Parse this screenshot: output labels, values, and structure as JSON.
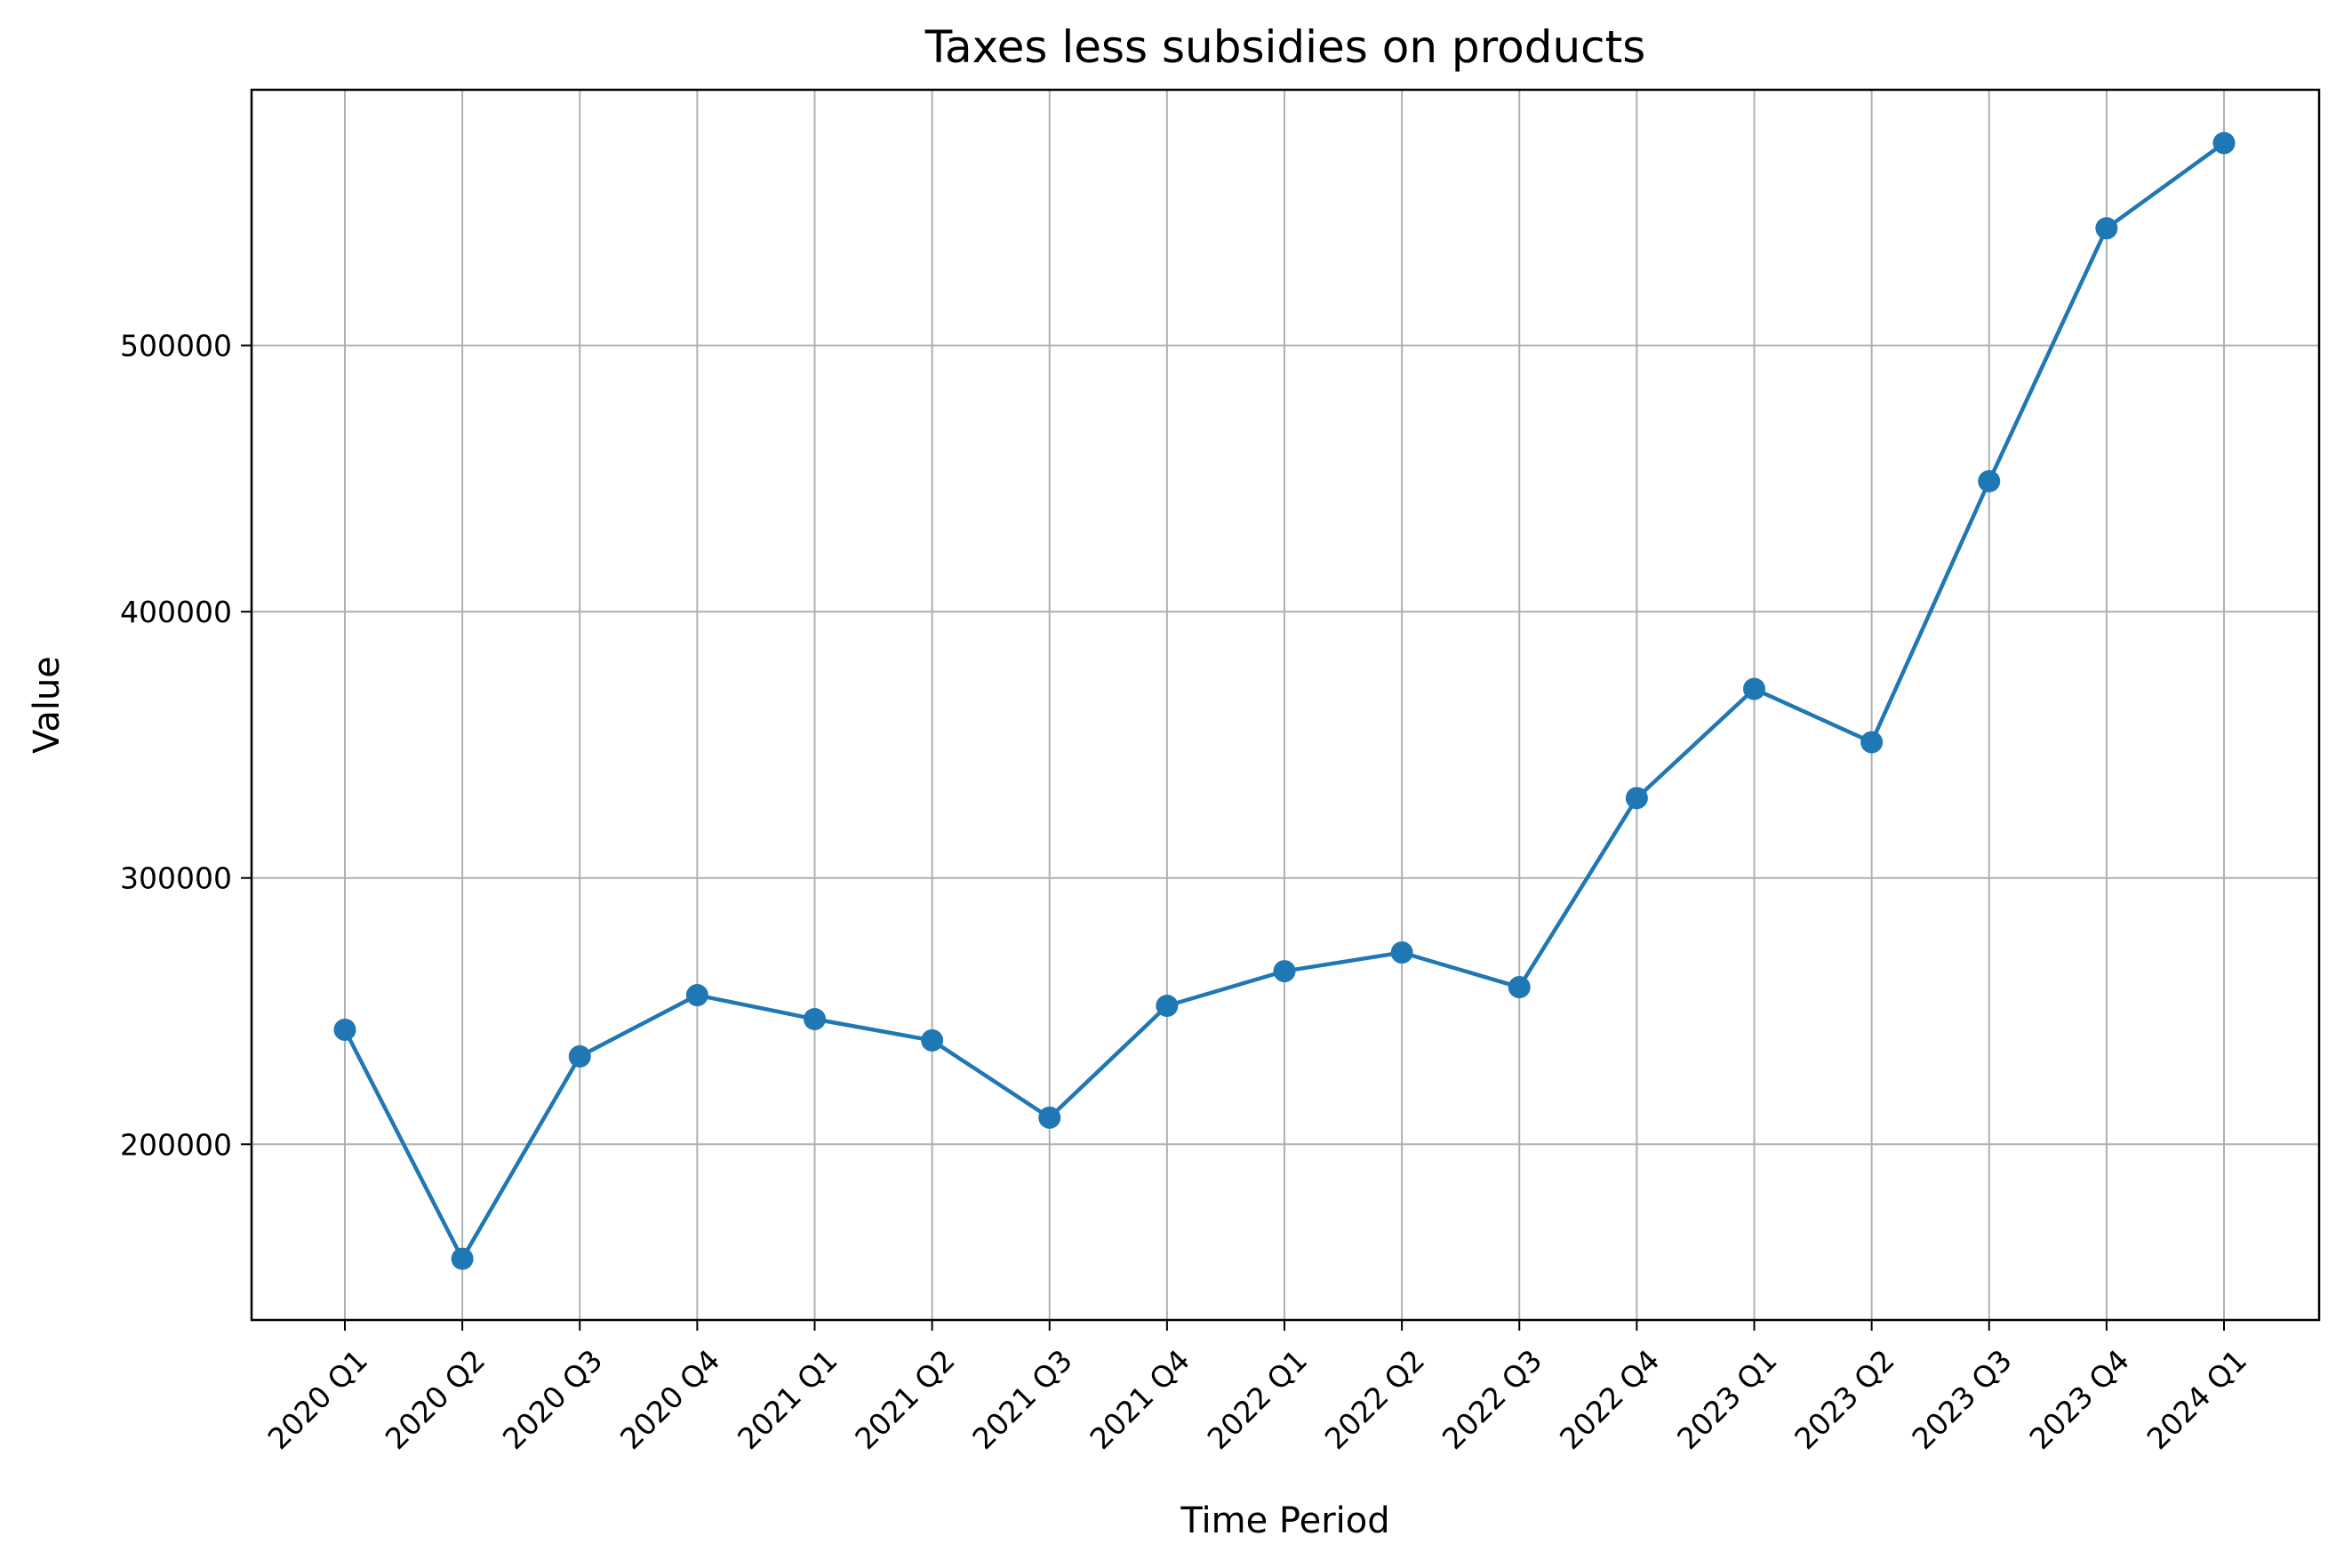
{
  "chart_data": {
    "type": "line",
    "title": "Taxes less subsidies on products",
    "xlabel": "Time Period",
    "ylabel": "Value",
    "categories": [
      "2020 Q1",
      "2020 Q2",
      "2020 Q3",
      "2020 Q4",
      "2021 Q1",
      "2021 Q2",
      "2021 Q3",
      "2021 Q4",
      "2022 Q1",
      "2022 Q2",
      "2022 Q3",
      "2022 Q4",
      "2023 Q1",
      "2023 Q2",
      "2023 Q3",
      "2023 Q4",
      "2024 Q1"
    ],
    "series": [
      {
        "values": [
          243000,
          157000,
          233000,
          256000,
          247000,
          239000,
          210000,
          252000,
          265000,
          272000,
          259000,
          330000,
          371000,
          351000,
          449000,
          544000,
          576000
        ],
        "color": "#1f77b4"
      }
    ],
    "yticks": [
      200000,
      300000,
      400000,
      500000
    ],
    "ytick_labels": [
      "200000",
      "300000",
      "400000",
      "500000"
    ],
    "ylim": [
      134000,
      596000
    ],
    "grid": true,
    "x_tick_rotation": -45,
    "marker": "circle"
  }
}
